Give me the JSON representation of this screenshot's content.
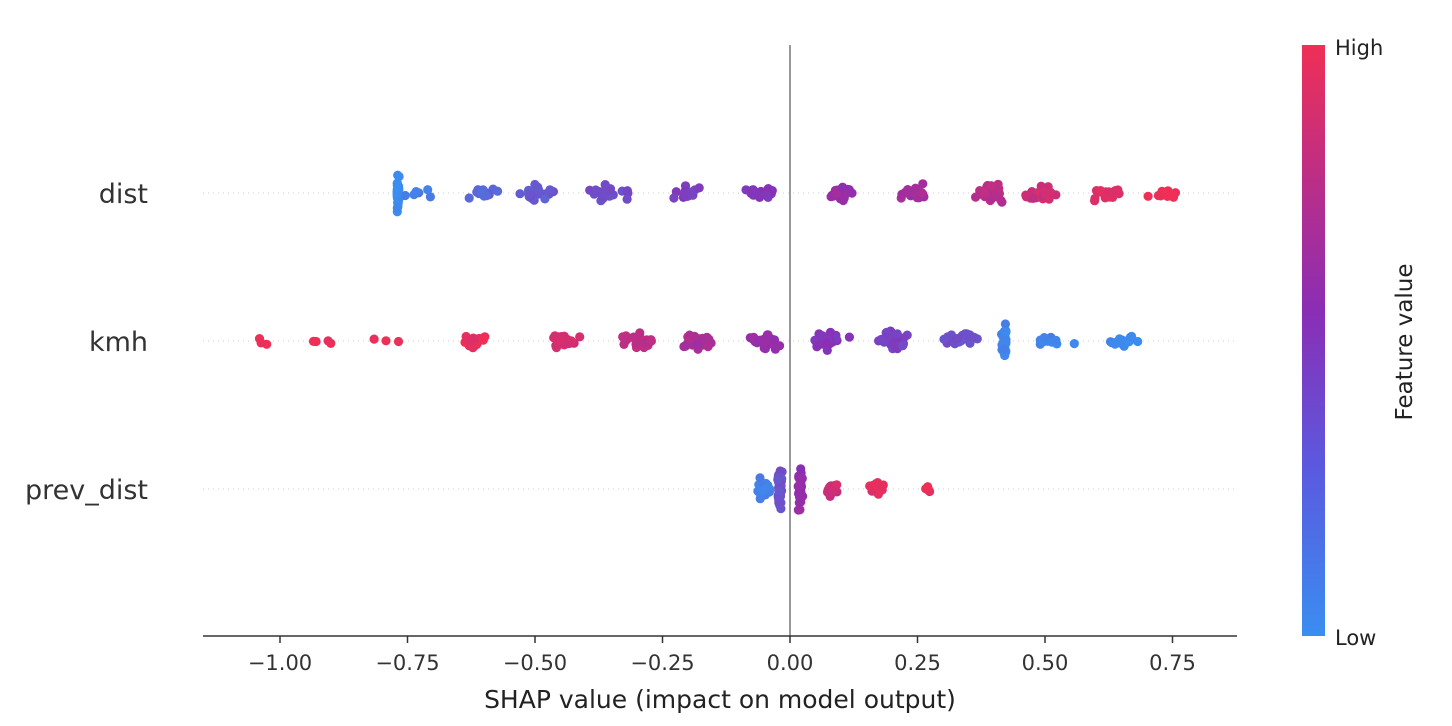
{
  "chart_data": {
    "type": "scatter",
    "subtype": "shap-beeswarm",
    "title": "",
    "xlabel": "SHAP value (impact on model output)",
    "ylabel": "",
    "xlim": [
      -1.15,
      0.87
    ],
    "xticks": [
      -1.0,
      -0.75,
      -0.5,
      -0.25,
      0.0,
      0.25,
      0.5,
      0.75
    ],
    "xtick_labels": [
      "−1.00",
      "−0.75",
      "−0.50",
      "−0.25",
      "0.00",
      "0.25",
      "0.50",
      "0.75"
    ],
    "reference_line_x": 0.0,
    "features": [
      {
        "name": "dist",
        "min": -0.77,
        "max": 0.77,
        "clusters": [
          {
            "x": -0.77,
            "count": 38,
            "feature_value": 0.0
          },
          {
            "x": -0.72,
            "count": 6,
            "feature_value": 0.12
          },
          {
            "x": -0.6,
            "count": 14,
            "feature_value": 0.22
          },
          {
            "x": -0.5,
            "count": 24,
            "feature_value": 0.3
          },
          {
            "x": -0.35,
            "count": 22,
            "feature_value": 0.38
          },
          {
            "x": -0.2,
            "count": 20,
            "feature_value": 0.45
          },
          {
            "x": -0.05,
            "count": 18,
            "feature_value": 0.52
          },
          {
            "x": 0.1,
            "count": 20,
            "feature_value": 0.6
          },
          {
            "x": 0.25,
            "count": 24,
            "feature_value": 0.68
          },
          {
            "x": 0.4,
            "count": 30,
            "feature_value": 0.76
          },
          {
            "x": 0.5,
            "count": 26,
            "feature_value": 0.84
          },
          {
            "x": 0.62,
            "count": 18,
            "feature_value": 0.92
          },
          {
            "x": 0.73,
            "count": 10,
            "feature_value": 1.0
          }
        ]
      },
      {
        "name": "kmh",
        "min": -1.05,
        "max": 0.73,
        "clusters": [
          {
            "x": -1.04,
            "count": 3,
            "feature_value": 1.0
          },
          {
            "x": -0.92,
            "count": 4,
            "feature_value": 1.0
          },
          {
            "x": -0.8,
            "count": 3,
            "feature_value": 1.0
          },
          {
            "x": -0.62,
            "count": 18,
            "feature_value": 0.95
          },
          {
            "x": -0.45,
            "count": 22,
            "feature_value": 0.88
          },
          {
            "x": -0.3,
            "count": 30,
            "feature_value": 0.78
          },
          {
            "x": -0.18,
            "count": 28,
            "feature_value": 0.7
          },
          {
            "x": -0.05,
            "count": 26,
            "feature_value": 0.6
          },
          {
            "x": 0.08,
            "count": 26,
            "feature_value": 0.52
          },
          {
            "x": 0.2,
            "count": 28,
            "feature_value": 0.44
          },
          {
            "x": 0.33,
            "count": 24,
            "feature_value": 0.36
          },
          {
            "x": 0.42,
            "count": 44,
            "feature_value": 0.05
          },
          {
            "x": 0.52,
            "count": 10,
            "feature_value": 0.05
          },
          {
            "x": 0.65,
            "count": 16,
            "feature_value": 0.02
          }
        ]
      },
      {
        "name": "prev_dist",
        "min": -0.07,
        "max": 0.29,
        "clusters": [
          {
            "x": -0.05,
            "count": 30,
            "feature_value": 0.08
          },
          {
            "x": -0.02,
            "count": 50,
            "feature_value": 0.35
          },
          {
            "x": 0.02,
            "count": 40,
            "feature_value": 0.6
          },
          {
            "x": 0.08,
            "count": 18,
            "feature_value": 0.85
          },
          {
            "x": 0.17,
            "count": 14,
            "feature_value": 0.95
          },
          {
            "x": 0.27,
            "count": 5,
            "feature_value": 1.0
          }
        ]
      }
    ],
    "colorbar": {
      "label": "Feature value",
      "high_label": "High",
      "low_label": "Low",
      "low_color": "#3a8ef0",
      "mid_color": "#8a2eb5",
      "high_color": "#ef2f56"
    }
  }
}
